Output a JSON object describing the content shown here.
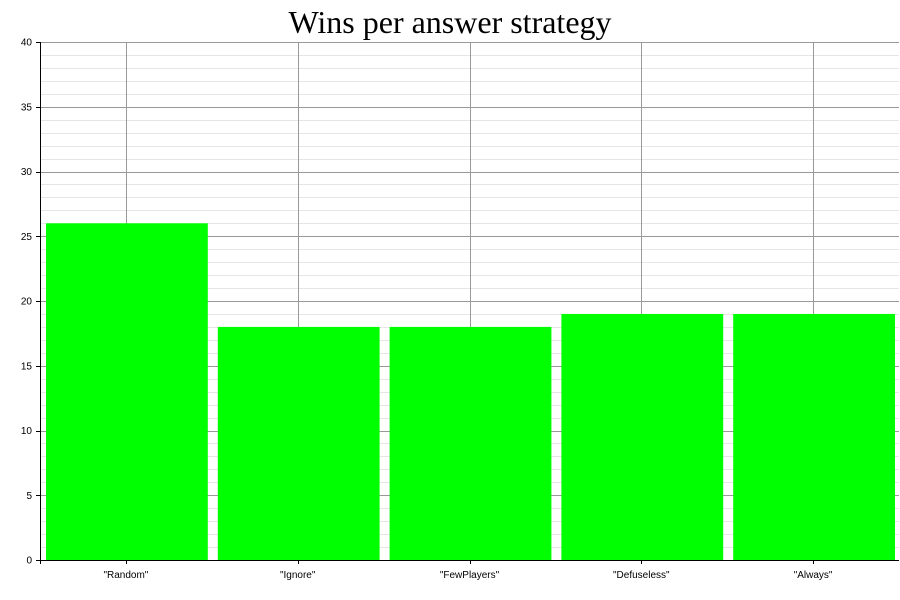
{
  "chart_data": {
    "type": "bar",
    "title": "Wins per answer strategy",
    "xlabel": "",
    "ylabel": "",
    "categories": [
      "\"Random\"",
      "\"Ignore\"",
      "\"FewPlayers\"",
      "\"Defuseless\"",
      "\"Always\""
    ],
    "values": [
      26,
      18,
      18,
      19,
      19
    ],
    "ylim": [
      0,
      40
    ],
    "y_ticks": [
      "0",
      "5",
      "10",
      "15",
      "20",
      "25",
      "30",
      "35",
      "40"
    ],
    "grid": true,
    "legend": "none",
    "bar_color": "#00ff00"
  }
}
